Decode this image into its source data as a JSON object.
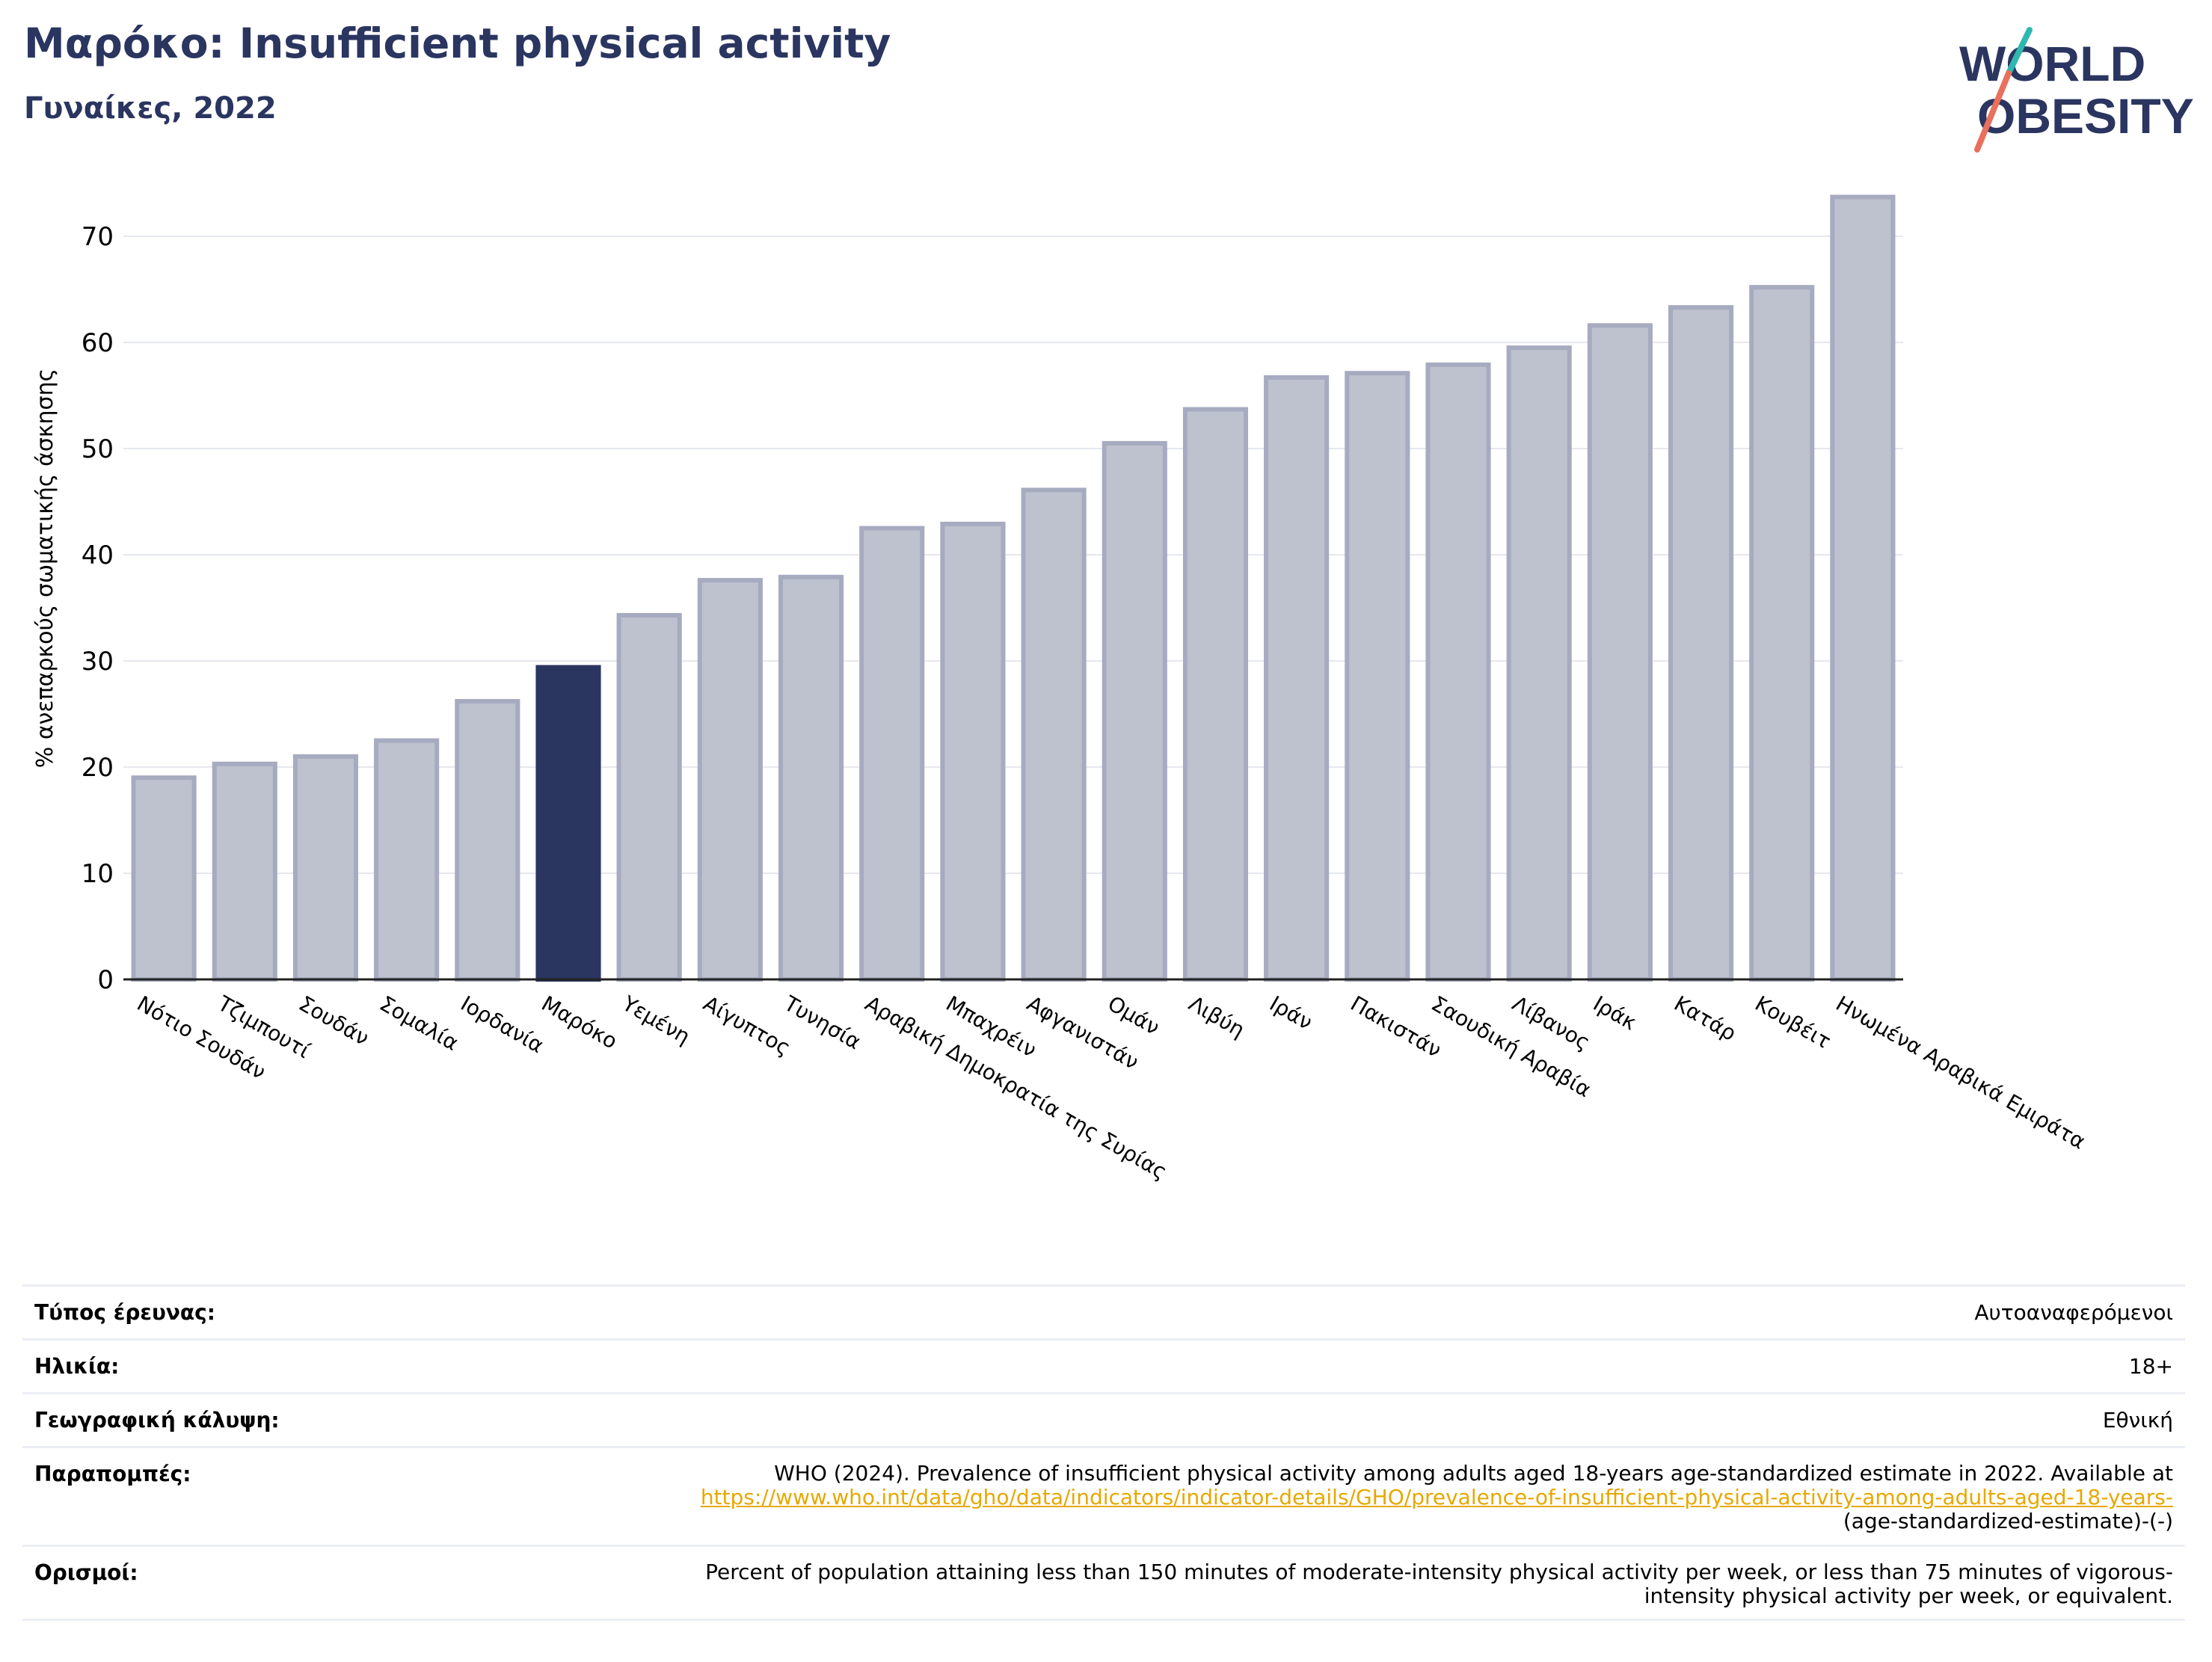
{
  "header": {
    "title": "Μαρόκο: Insufficient physical activity",
    "subtitle": "Γυναίκες, 2022"
  },
  "logo": {
    "line1": "WORLD",
    "line2": "OBESITY"
  },
  "chart_data": {
    "type": "bar",
    "ylabel": "% ανεπαρκούς σωματικής άσκησης",
    "ylim": [
      0,
      75
    ],
    "yticks": [
      0,
      10,
      20,
      30,
      40,
      50,
      60,
      70
    ],
    "grid": true,
    "highlight": "Μαρόκο",
    "colors": {
      "bar": "#bec1ce",
      "bar_edge": "#a7abc0",
      "highlight": "#2a3560",
      "title": "#2a3560"
    },
    "categories": [
      "Νότιο Σουδάν",
      "Τζιμπουτί",
      "Σουδάν",
      "Σομαλία",
      "Ιορδανία",
      "Μαρόκο",
      "Υεμένη",
      "Αίγυπτος",
      "Τυνησία",
      "Αραβική Δημοκρατία της Συρίας",
      "Μπαχρέιν",
      "Αφγανιστάν",
      "Ομάν",
      "Λιβύη",
      "Ιράν",
      "Πακιστάν",
      "Σαουδική Αραβία",
      "Λίβανος",
      "Ιράκ",
      "Κατάρ",
      "Κουβέιτ",
      "Ηνωμένα Αραβικά Εμιράτα"
    ],
    "values": [
      19.0,
      20.3,
      21.0,
      22.5,
      26.2,
      29.4,
      34.3,
      37.6,
      37.9,
      42.5,
      42.9,
      46.1,
      50.5,
      53.7,
      56.7,
      57.1,
      57.9,
      59.5,
      61.6,
      63.3,
      65.2,
      73.7
    ]
  },
  "info": {
    "survey_type": {
      "label": "Τύπος έρευνας:",
      "value": "Αυτοαναφερόμενοι"
    },
    "age": {
      "label": "Ηλικία:",
      "value": "18+"
    },
    "coverage": {
      "label": "Γεωγραφική κάλυψη:",
      "value": "Εθνική"
    },
    "references": {
      "label": "Παραπομπές:",
      "text": "WHO (2024). Prevalence of insufficient physical activity among adults aged 18-years age-standardized estimate in 2022. Available at",
      "link": "https://www.who.int/data/gho/data/indicators/indicator-details/GHO/prevalence-of-insufficient-physical-activity-among-adults-aged-18-years-",
      "tail": "(age-standardized-estimate)-(-)"
    },
    "definitions": {
      "label": "Ορισμοί:",
      "line1": "Percent of population attaining less than 150 minutes of moderate-intensity physical activity per week, or less than 75 minutes of vigorous-",
      "line2": "intensity physical activity per week, or equivalent."
    }
  }
}
